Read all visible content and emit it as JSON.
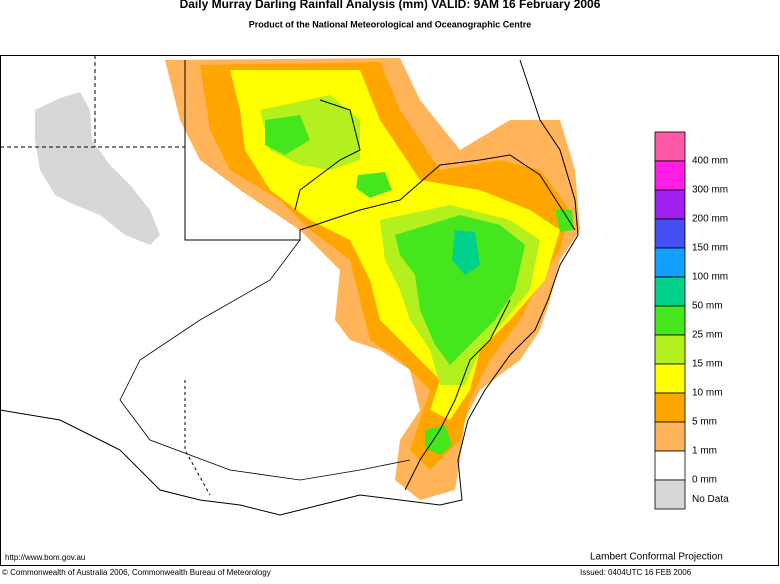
{
  "header": {
    "title": "Daily Murray Darling Rainfall Analysis (mm)  VALID: 9AM 16 February 2006",
    "subtitle": "Product of the National Meteorological and Oceanographic Centre"
  },
  "legend": {
    "colors": [
      "#ff5aa8",
      "#ff1ee6",
      "#a020f0",
      "#4650f0",
      "#14a0ff",
      "#00d28c",
      "#46e61e",
      "#b4f01e",
      "#ffff00",
      "#ffa500",
      "#ffb45a",
      "#ffffff",
      "#d7d7d7"
    ],
    "labels": [
      "400 mm",
      "300 mm",
      "200 mm",
      "150 mm",
      "100 mm",
      "50 mm",
      "25 mm",
      "15 mm",
      "10 mm",
      "5 mm",
      "1 mm",
      "0 mm",
      "No Data"
    ]
  },
  "footer": {
    "url": "http://www.bom.gov.au",
    "projection": "Lambert Conformal Projection",
    "copyright": "© Commonwealth of Australia 2006, Commonwealth Bureau of Meteorology",
    "issued": "Issued: 0404UTC 16 FEB 2006"
  }
}
